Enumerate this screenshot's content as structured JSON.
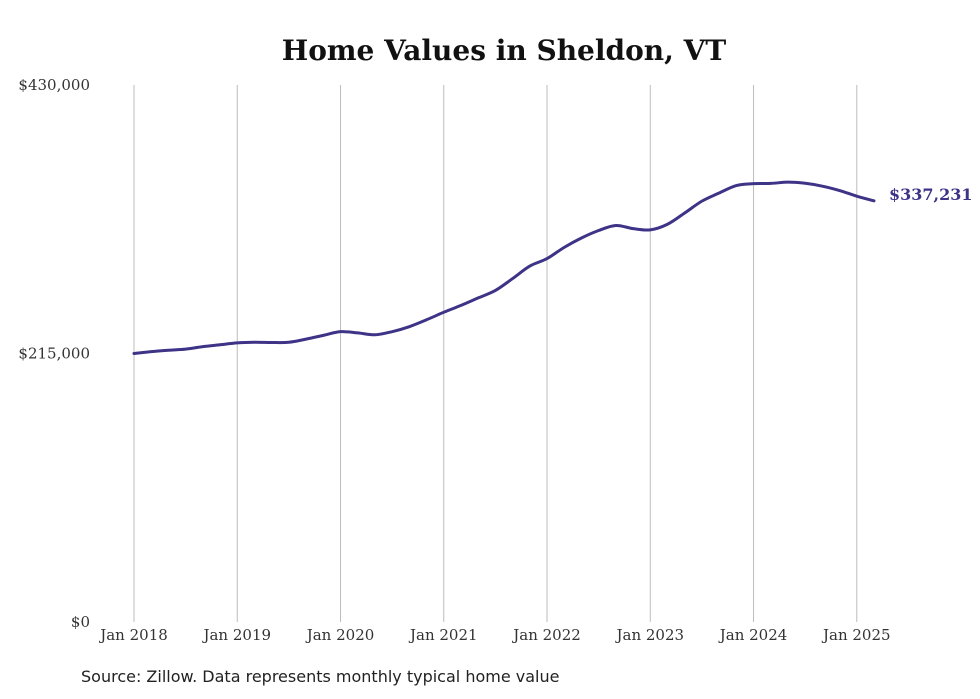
{
  "source_note": "Source: Zillow. Data represents monthly typical home value",
  "chart_data": {
    "type": "line",
    "title": "Home Values in Sheldon, VT",
    "xlabel": "",
    "ylabel": "",
    "ylim": [
      0,
      430000
    ],
    "xlim": [
      "2018-01",
      "2025-03"
    ],
    "grid": {
      "vertical": true,
      "horizontal": false
    },
    "legend": "none",
    "y_ticks": [
      {
        "value": 0,
        "label": "$0"
      },
      {
        "value": 215000,
        "label": "$215,000"
      },
      {
        "value": 430000,
        "label": "$430,000"
      }
    ],
    "x_ticks": [
      {
        "value": "2018-01",
        "label": "Jan 2018"
      },
      {
        "value": "2019-01",
        "label": "Jan 2019"
      },
      {
        "value": "2020-01",
        "label": "Jan 2020"
      },
      {
        "value": "2021-01",
        "label": "Jan 2021"
      },
      {
        "value": "2022-01",
        "label": "Jan 2022"
      },
      {
        "value": "2023-01",
        "label": "Jan 2023"
      },
      {
        "value": "2024-01",
        "label": "Jan 2024"
      },
      {
        "value": "2025-01",
        "label": "Jan 2025"
      }
    ],
    "end_label": "$337,231",
    "series": [
      {
        "color": "#3d3387",
        "points": [
          [
            "2018-01",
            215000
          ],
          [
            "2018-03",
            216500
          ],
          [
            "2018-05",
            217600
          ],
          [
            "2018-07",
            218500
          ],
          [
            "2018-09",
            220500
          ],
          [
            "2018-11",
            222000
          ],
          [
            "2019-01",
            223500
          ],
          [
            "2019-03",
            224000
          ],
          [
            "2019-05",
            223800
          ],
          [
            "2019-07",
            224000
          ],
          [
            "2019-09",
            226500
          ],
          [
            "2019-11",
            229500
          ],
          [
            "2020-01",
            232500
          ],
          [
            "2020-03",
            231500
          ],
          [
            "2020-05",
            230000
          ],
          [
            "2020-07",
            232500
          ],
          [
            "2020-09",
            236500
          ],
          [
            "2020-11",
            242000
          ],
          [
            "2021-01",
            248000
          ],
          [
            "2021-03",
            253500
          ],
          [
            "2021-05",
            259500
          ],
          [
            "2021-07",
            265500
          ],
          [
            "2021-09",
            275000
          ],
          [
            "2021-11",
            285000
          ],
          [
            "2022-01",
            291000
          ],
          [
            "2022-03",
            300000
          ],
          [
            "2022-05",
            307500
          ],
          [
            "2022-07",
            313500
          ],
          [
            "2022-09",
            317500
          ],
          [
            "2022-11",
            315000
          ],
          [
            "2023-01",
            314000
          ],
          [
            "2023-03",
            318500
          ],
          [
            "2023-05",
            327500
          ],
          [
            "2023-07",
            337000
          ],
          [
            "2023-09",
            343500
          ],
          [
            "2023-11",
            349500
          ],
          [
            "2024-01",
            351000
          ],
          [
            "2024-03",
            351200
          ],
          [
            "2024-05",
            352200
          ],
          [
            "2024-07",
            351300
          ],
          [
            "2024-09",
            349000
          ],
          [
            "2024-11",
            345500
          ],
          [
            "2025-01",
            341000
          ],
          [
            "2025-03",
            337231
          ]
        ]
      }
    ]
  }
}
